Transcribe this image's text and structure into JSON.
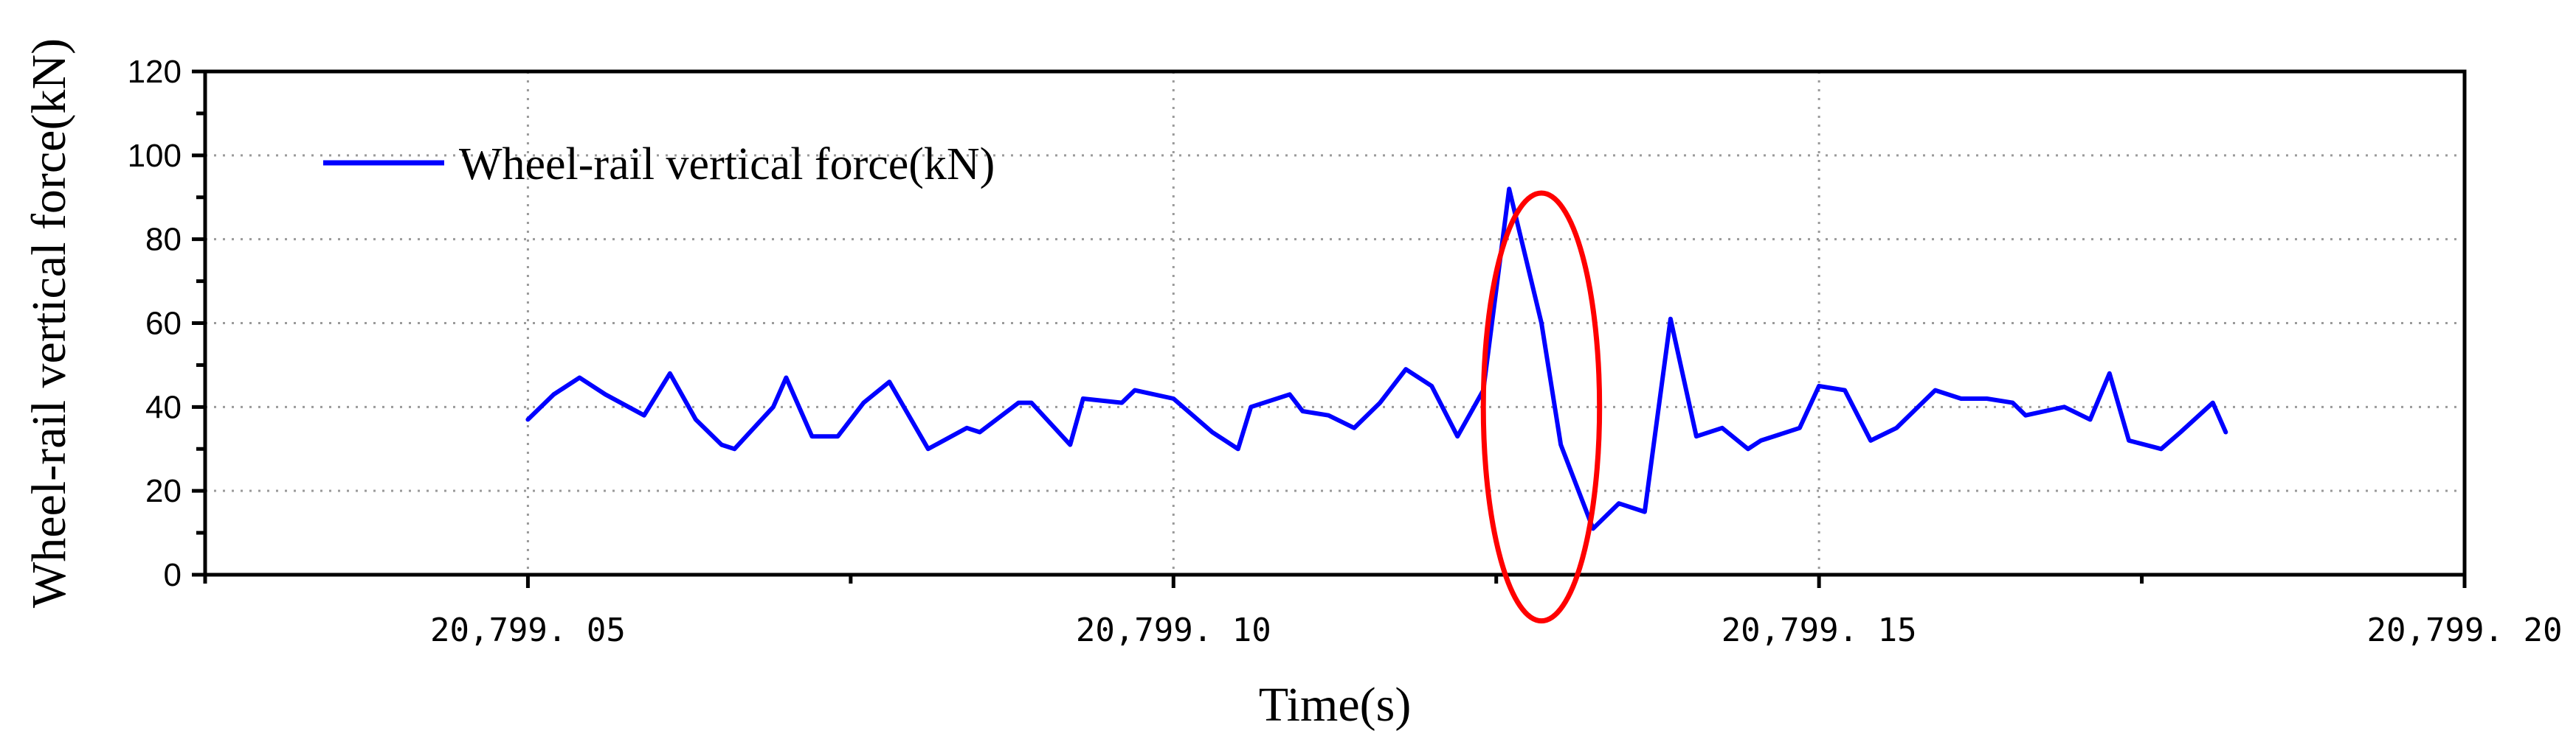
{
  "chart_data": {
    "type": "line",
    "title": "",
    "xlabel": "Time(s)",
    "ylabel": "Wheel-rail vertical force(kN)",
    "xlim": [
      20799.025,
      20799.2
    ],
    "ylim": [
      0,
      120
    ],
    "x_ticks": [
      20799.05,
      20799.1,
      20799.15,
      20799.2
    ],
    "x_tick_labels": [
      "20,799. 05",
      "20,799. 10",
      "20,799. 15",
      "20,799. 20"
    ],
    "y_ticks": [
      0,
      20,
      40,
      60,
      80,
      100,
      120
    ],
    "y_tick_labels": [
      "0",
      "20",
      "40",
      "60",
      "80",
      "100",
      "120"
    ],
    "grid": true,
    "legend_position": "top-left",
    "series": [
      {
        "name": "Wheel-rail vertical force(kN)",
        "color": "#0000ff",
        "x": [
          20799.05,
          20799.052,
          20799.054,
          20799.056,
          20799.059,
          20799.061,
          20799.063,
          20799.065,
          20799.066,
          20799.069,
          20799.07,
          20799.072,
          20799.074,
          20799.076,
          20799.078,
          20799.081,
          20799.084,
          20799.085,
          20799.088,
          20799.089,
          20799.092,
          20799.093,
          20799.096,
          20799.097,
          20799.1,
          20799.103,
          20799.105,
          20799.106,
          20799.109,
          20799.11,
          20799.112,
          20799.114,
          20799.116,
          20799.118,
          20799.12,
          20799.122,
          20799.124,
          20799.126,
          20799.1285,
          20799.13,
          20799.1325,
          20799.1345,
          20799.1365,
          20799.1385,
          20799.1405,
          20799.1425,
          20799.1445,
          20799.1455,
          20799.1485,
          20799.15,
          20799.152,
          20799.154,
          20799.156,
          20799.159,
          20799.161,
          20799.163,
          20799.165,
          20799.166,
          20799.169,
          20799.171,
          20799.1725,
          20799.174,
          20799.1765,
          20799.178,
          20799.1805,
          20799.1815
        ],
        "values": [
          37,
          43,
          47,
          43,
          38,
          48,
          37,
          31,
          30,
          40,
          47,
          33,
          33,
          41,
          46,
          30,
          35,
          34,
          41,
          41,
          31,
          42,
          41,
          44,
          42,
          34,
          30,
          40,
          43,
          39,
          38,
          35,
          41,
          49,
          45,
          33,
          44,
          92,
          60,
          31,
          11,
          17,
          15,
          61,
          33,
          35,
          30,
          32,
          35,
          45,
          44,
          32,
          35,
          44,
          42,
          42,
          41,
          38,
          40,
          37,
          48,
          32,
          30,
          34,
          41,
          34
        ]
      }
    ],
    "annotations": [
      {
        "type": "ellipse",
        "color": "#ff0000",
        "center_x": 20799.1285,
        "center_y": 40,
        "rx_data": 0.0045,
        "ry_data": 51
      }
    ]
  }
}
